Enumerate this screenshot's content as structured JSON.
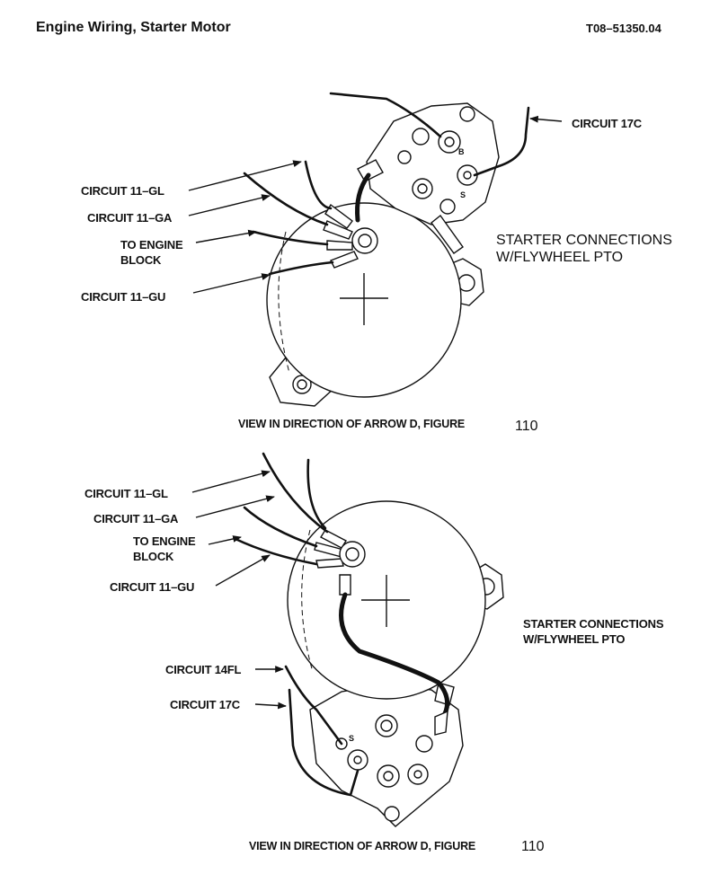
{
  "header": {
    "title": "Engine Wiring, Starter Motor",
    "doc_number": "T08–51350.04"
  },
  "top_view": {
    "labels": {
      "circuit_17c": "CIRCUIT 17C",
      "circuit_11gl": "CIRCUIT 11–GL",
      "circuit_11ga": "CIRCUIT 11–GA",
      "engine_block_1": "TO ENGINE",
      "engine_block_2": "BLOCK",
      "circuit_11gu": "CIRCUIT 11–GU",
      "terminal_b": "B",
      "terminal_s": "S"
    },
    "note_1": "STARTER CONNECTIONS",
    "note_2": "W/FLYWHEEL PTO",
    "caption": "VIEW IN DIRECTION OF ARROW D, FIGURE",
    "caption_figure": "110"
  },
  "bottom_view": {
    "labels": {
      "circuit_11gl": "CIRCUIT 11–GL",
      "circuit_11ga": "CIRCUIT 11–GA",
      "engine_block_1": "TO ENGINE",
      "engine_block_2": "BLOCK",
      "circuit_11gu": "CIRCUIT 11–GU",
      "circuit_14fl": "CIRCUIT 14FL",
      "circuit_17c": "CIRCUIT 17C",
      "terminal_s": "S"
    },
    "note_1": "STARTER CONNECTIONS",
    "note_2": "W/FLYWHEEL PTO",
    "caption": "VIEW IN DIRECTION OF ARROW D, FIGURE",
    "caption_figure": "110"
  }
}
